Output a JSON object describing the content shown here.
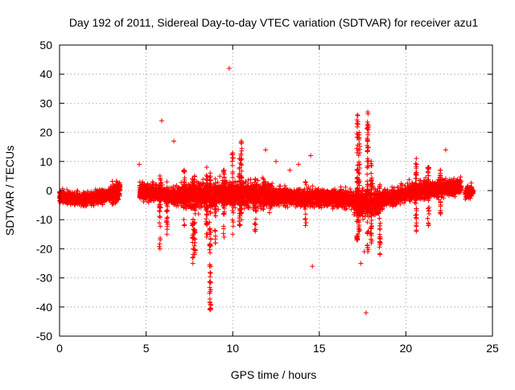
{
  "chart_data": {
    "type": "scatter",
    "title": "Day 192 of 2011, Sidereal Day-to-day VTEC variation (SDTVAR) for receiver azu1",
    "xlabel": "GPS time / hours",
    "ylabel": "SDTVAR / TECUs",
    "xlim": [
      0,
      25
    ],
    "ylim": [
      -50,
      50
    ],
    "xticks": [
      0,
      5,
      10,
      15,
      20,
      25
    ],
    "xtick_labels": [
      "0",
      "5",
      "10",
      "15",
      "20",
      "25"
    ],
    "yticks": [
      50,
      40,
      30,
      20,
      10,
      0,
      -10,
      -20,
      -30,
      -40,
      -50
    ],
    "ytick_labels": [
      "50",
      "40",
      "30",
      "20",
      "10",
      "0",
      "-10",
      "-20",
      "-30",
      "-40",
      "-50"
    ],
    "grid": true,
    "marker": "+",
    "series": [
      {
        "name": "SDTVAR",
        "color": "#ff0000",
        "bands": [
          {
            "x_start": 0.0,
            "x_end": 1.5,
            "center_start": -2.0,
            "center_end": -3.0,
            "half_width": 2.5
          },
          {
            "x_start": 1.5,
            "x_end": 3.0,
            "center_start": -3.0,
            "center_end": -1.5,
            "half_width": 2.5
          },
          {
            "x_start": 3.0,
            "x_end": 3.5,
            "center_start": -1.5,
            "center_end": 0.5,
            "half_width": 4.0
          },
          {
            "x_start": 4.6,
            "x_end": 7.0,
            "center_start": 0.0,
            "center_end": -2.0,
            "half_width": 3.5
          },
          {
            "x_start": 7.0,
            "x_end": 9.5,
            "center_start": -2.0,
            "center_end": -1.0,
            "half_width": 5.0
          },
          {
            "x_start": 9.5,
            "x_end": 12.3,
            "center_start": -1.0,
            "center_end": -1.5,
            "half_width": 5.0
          },
          {
            "x_start": 12.2,
            "x_end": 15.5,
            "center_start": -2.0,
            "center_end": -2.5,
            "half_width": 3.5
          },
          {
            "x_start": 15.5,
            "x_end": 17.0,
            "center_start": -2.5,
            "center_end": -3.0,
            "half_width": 3.5
          },
          {
            "x_start": 17.0,
            "x_end": 18.5,
            "center_start": -4.0,
            "center_end": -4.0,
            "half_width": 5.5
          },
          {
            "x_start": 18.5,
            "x_end": 20.0,
            "center_start": -3.5,
            "center_end": -1.0,
            "half_width": 3.5
          },
          {
            "x_start": 20.0,
            "x_end": 23.2,
            "center_start": -0.5,
            "center_end": 1.5,
            "half_width": 3.5
          },
          {
            "x_start": 23.4,
            "x_end": 23.9,
            "center_start": -0.5,
            "center_end": -0.5,
            "half_width": 2.5
          }
        ],
        "excursions": [
          {
            "x": 5.8,
            "ymin": -20,
            "ymax": 5
          },
          {
            "x": 6.2,
            "ymin": -15,
            "ymax": 3
          },
          {
            "x": 7.2,
            "ymin": -12,
            "ymax": 7
          },
          {
            "x": 7.7,
            "ymin": -25,
            "ymax": 4
          },
          {
            "x": 7.8,
            "ymin": -22,
            "ymax": 5
          },
          {
            "x": 8.5,
            "ymin": -16,
            "ymax": 8
          },
          {
            "x": 8.7,
            "ymin": -41,
            "ymax": 6
          },
          {
            "x": 9.0,
            "ymin": -18,
            "ymax": 4
          },
          {
            "x": 9.5,
            "ymin": -16,
            "ymax": 7
          },
          {
            "x": 10.0,
            "ymin": -15,
            "ymax": 13
          },
          {
            "x": 10.4,
            "ymin": -12,
            "ymax": 11
          },
          {
            "x": 10.5,
            "ymin": -10,
            "ymax": 17
          },
          {
            "x": 11.3,
            "ymin": -14,
            "ymax": 4
          },
          {
            "x": 14.2,
            "ymin": -12,
            "ymax": 3
          },
          {
            "x": 17.2,
            "ymin": -17,
            "ymax": 26
          },
          {
            "x": 17.3,
            "ymin": -14,
            "ymax": 20
          },
          {
            "x": 17.8,
            "ymin": -21,
            "ymax": 27
          },
          {
            "x": 18.0,
            "ymin": -18,
            "ymax": 10
          },
          {
            "x": 18.5,
            "ymin": -22,
            "ymax": 2
          },
          {
            "x": 20.6,
            "ymin": -14,
            "ymax": 11
          },
          {
            "x": 21.3,
            "ymin": -12,
            "ymax": 8
          },
          {
            "x": 22.0,
            "ymin": -8,
            "ymax": 7
          }
        ],
        "outliers": [
          {
            "x": 9.8,
            "y": 42
          },
          {
            "x": 5.9,
            "y": 24
          },
          {
            "x": 6.6,
            "y": 17
          },
          {
            "x": 4.6,
            "y": 9
          },
          {
            "x": 11.9,
            "y": 14
          },
          {
            "x": 12.5,
            "y": 10
          },
          {
            "x": 13.3,
            "y": 7
          },
          {
            "x": 13.8,
            "y": 9
          },
          {
            "x": 14.5,
            "y": 12
          },
          {
            "x": 14.6,
            "y": -26
          },
          {
            "x": 9.0,
            "y": -18
          },
          {
            "x": 17.4,
            "y": -25
          },
          {
            "x": 17.6,
            "y": -21
          },
          {
            "x": 17.7,
            "y": -42
          },
          {
            "x": 22.3,
            "y": 14
          },
          {
            "x": 12.2,
            "y": -6
          },
          {
            "x": 13.1,
            "y": 0
          },
          {
            "x": 4.8,
            "y": 2
          }
        ]
      }
    ]
  }
}
